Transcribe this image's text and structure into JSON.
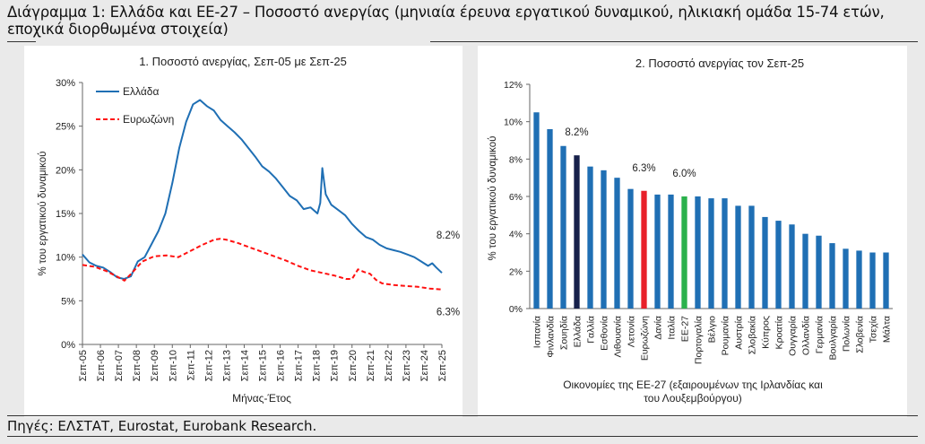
{
  "title": "Διάγραμμα 1: Ελλάδα και ΕΕ-27 – Ποσοστό ανεργίας (μηνιαία έρευνα εργατικού δυναμικού, ηλικιακή ομάδα 15-74 ετών, εποχικά διορθωμένα στοιχεία)",
  "source": "Πηγές: ΕΛΣΤΑΤ, Eurostat, Eurobank Research.",
  "chart_data": [
    {
      "type": "line",
      "title": "1. Ποσοστό ανεργίας, Σεπ-05 με Σεπ-25",
      "xlabel": "Μήνας-Έτος",
      "ylabel": "% του εργατικού δυναμικού",
      "ylim": [
        0,
        30
      ],
      "yticks": [
        "0%",
        "5%",
        "10%",
        "15%",
        "20%",
        "25%",
        "30%"
      ],
      "xticks": [
        "Σεπ-05",
        "Σεπ-06",
        "Σεπ-07",
        "Σεπ-08",
        "Σεπ-09",
        "Σεπ-10",
        "Σεπ-11",
        "Σεπ-12",
        "Σεπ-13",
        "Σεπ-14",
        "Σεπ-15",
        "Σεπ-16",
        "Σεπ-17",
        "Σεπ-18",
        "Σεπ-19",
        "Σεπ-20",
        "Σεπ-21",
        "Σεπ-22",
        "Σεπ-23",
        "Σεπ-24",
        "Σεπ-25"
      ],
      "legend": "top-left",
      "annotations": [
        {
          "text": "8.2%",
          "series": "Ελλάδα",
          "x": 20.0,
          "y": 8.2
        },
        {
          "text": "6.3%",
          "series": "Ευρωζώνη",
          "x": 20.0,
          "y": 6.3
        }
      ],
      "series": [
        {
          "name": "Ελλάδα",
          "color": "#1f6fb4",
          "dash": "solid",
          "points": [
            [
              0,
              10.3
            ],
            [
              0.5,
              9.4
            ],
            [
              1,
              9.0
            ],
            [
              1.5,
              8.8
            ],
            [
              2,
              8.3
            ],
            [
              2.5,
              7.7
            ],
            [
              3,
              7.5
            ],
            [
              3.5,
              7.8
            ],
            [
              4,
              9.5
            ],
            [
              4.5,
              10.0
            ],
            [
              5,
              11.5
            ],
            [
              5.5,
              13.0
            ],
            [
              6,
              15.0
            ],
            [
              6.5,
              18.5
            ],
            [
              7,
              22.5
            ],
            [
              7.5,
              25.5
            ],
            [
              8,
              27.5
            ],
            [
              8.5,
              28.0
            ],
            [
              9,
              27.3
            ],
            [
              9.5,
              26.8
            ],
            [
              10,
              25.7
            ],
            [
              10.5,
              25.0
            ],
            [
              11,
              24.3
            ],
            [
              11.5,
              23.5
            ],
            [
              12,
              22.5
            ],
            [
              12.5,
              21.5
            ],
            [
              13,
              20.4
            ],
            [
              13.5,
              19.8
            ],
            [
              14,
              19.0
            ],
            [
              14.5,
              18.0
            ],
            [
              15,
              17.0
            ],
            [
              15.5,
              16.5
            ],
            [
              16,
              15.5
            ],
            [
              16.5,
              15.7
            ],
            [
              17,
              15.0
            ],
            [
              17.2,
              16.2
            ],
            [
              17.35,
              20.2
            ],
            [
              17.6,
              17.2
            ],
            [
              18,
              16.0
            ],
            [
              18.5,
              15.4
            ],
            [
              19,
              14.8
            ],
            [
              19.5,
              13.8
            ],
            [
              20,
              13.0
            ],
            [
              20.5,
              12.3
            ],
            [
              21,
              12.0
            ],
            [
              21.5,
              11.4
            ],
            [
              22,
              11.0
            ],
            [
              22.5,
              10.8
            ],
            [
              23,
              10.6
            ],
            [
              23.5,
              10.3
            ],
            [
              24,
              10.0
            ],
            [
              24.5,
              9.5
            ],
            [
              25,
              9.0
            ],
            [
              25.3,
              9.3
            ],
            [
              25.6,
              8.8
            ],
            [
              26,
              8.2
            ]
          ]
        },
        {
          "name": "Ευρωζώνη",
          "color": "#ff1010",
          "dash": "dashed",
          "points": [
            [
              0,
              9.1
            ],
            [
              1,
              8.9
            ],
            [
              2,
              8.4
            ],
            [
              3,
              7.7
            ],
            [
              3.5,
              7.3
            ],
            [
              4,
              8.0
            ],
            [
              5,
              9.5
            ],
            [
              6,
              10.1
            ],
            [
              7,
              10.2
            ],
            [
              8,
              10.0
            ],
            [
              9,
              10.7
            ],
            [
              10,
              11.4
            ],
            [
              11,
              12.0
            ],
            [
              11.5,
              12.1
            ],
            [
              12,
              12.0
            ],
            [
              13,
              11.6
            ],
            [
              14,
              11.1
            ],
            [
              15,
              10.6
            ],
            [
              16,
              10.1
            ],
            [
              17,
              9.6
            ],
            [
              18,
              9.0
            ],
            [
              19,
              8.5
            ],
            [
              20,
              8.2
            ],
            [
              21,
              7.9
            ],
            [
              22,
              7.5
            ],
            [
              22.5,
              7.5
            ],
            [
              23,
              8.6
            ],
            [
              23.5,
              8.3
            ],
            [
              24,
              8.1
            ],
            [
              24.5,
              7.4
            ],
            [
              25,
              7.0
            ],
            [
              26,
              6.8
            ],
            [
              27,
              6.7
            ],
            [
              28,
              6.6
            ],
            [
              29,
              6.4
            ],
            [
              30,
              6.3
            ]
          ]
        }
      ]
    },
    {
      "type": "bar",
      "title": "2. Ποσοστό ανεργίας τον Σεπ-25",
      "xlabel": "Οικονομίες της ΕΕ-27 (εξαιρουμένων της Ιρλανδίας και του Λουξεμβούργου)",
      "ylabel": "% του εργατικού δυναμικού",
      "ylim": [
        0,
        12
      ],
      "yticks": [
        "0%",
        "2%",
        "4%",
        "6%",
        "8%",
        "10%",
        "12%"
      ],
      "categories": [
        "Ισπανία",
        "Φινλανδία",
        "Σουηδία",
        "Ελλάδα",
        "Γαλλία",
        "Εσθονία",
        "Λιθουανία",
        "Λετονία",
        "Ευρωζώνη",
        "Δανία",
        "Ιταλία",
        "ΕΕ-27",
        "Πορτογαλία",
        "Βέλγιο",
        "Ρουμανία",
        "Αυστρία",
        "Σλοβακία",
        "Κύπρος",
        "Κροατία",
        "Ουγγαρία",
        "Ολλανδία",
        "Γερμανία",
        "Βουλγαρία",
        "Πολωνία",
        "Σλοβενία",
        "Τσεχία",
        "Μάλτα"
      ],
      "values": [
        10.5,
        9.6,
        8.7,
        8.2,
        7.6,
        7.4,
        7.0,
        6.4,
        6.3,
        6.1,
        6.1,
        6.0,
        6.0,
        5.9,
        5.9,
        5.5,
        5.5,
        4.9,
        4.7,
        4.5,
        4.0,
        3.9,
        3.5,
        3.2,
        3.1,
        3.0,
        3.0
      ],
      "colors": {
        "default": "#1f6fb4",
        "Ελλάδα": "#16204a",
        "Ευρωζώνη": "#e8202a",
        "ΕΕ-27": "#2bb14c"
      },
      "data_labels": [
        {
          "category": "Ελλάδα",
          "text": "8.2%"
        },
        {
          "category": "Ευρωζώνη",
          "text": "6.3%"
        },
        {
          "category": "ΕΕ-27",
          "text": "6.0%"
        }
      ]
    }
  ]
}
